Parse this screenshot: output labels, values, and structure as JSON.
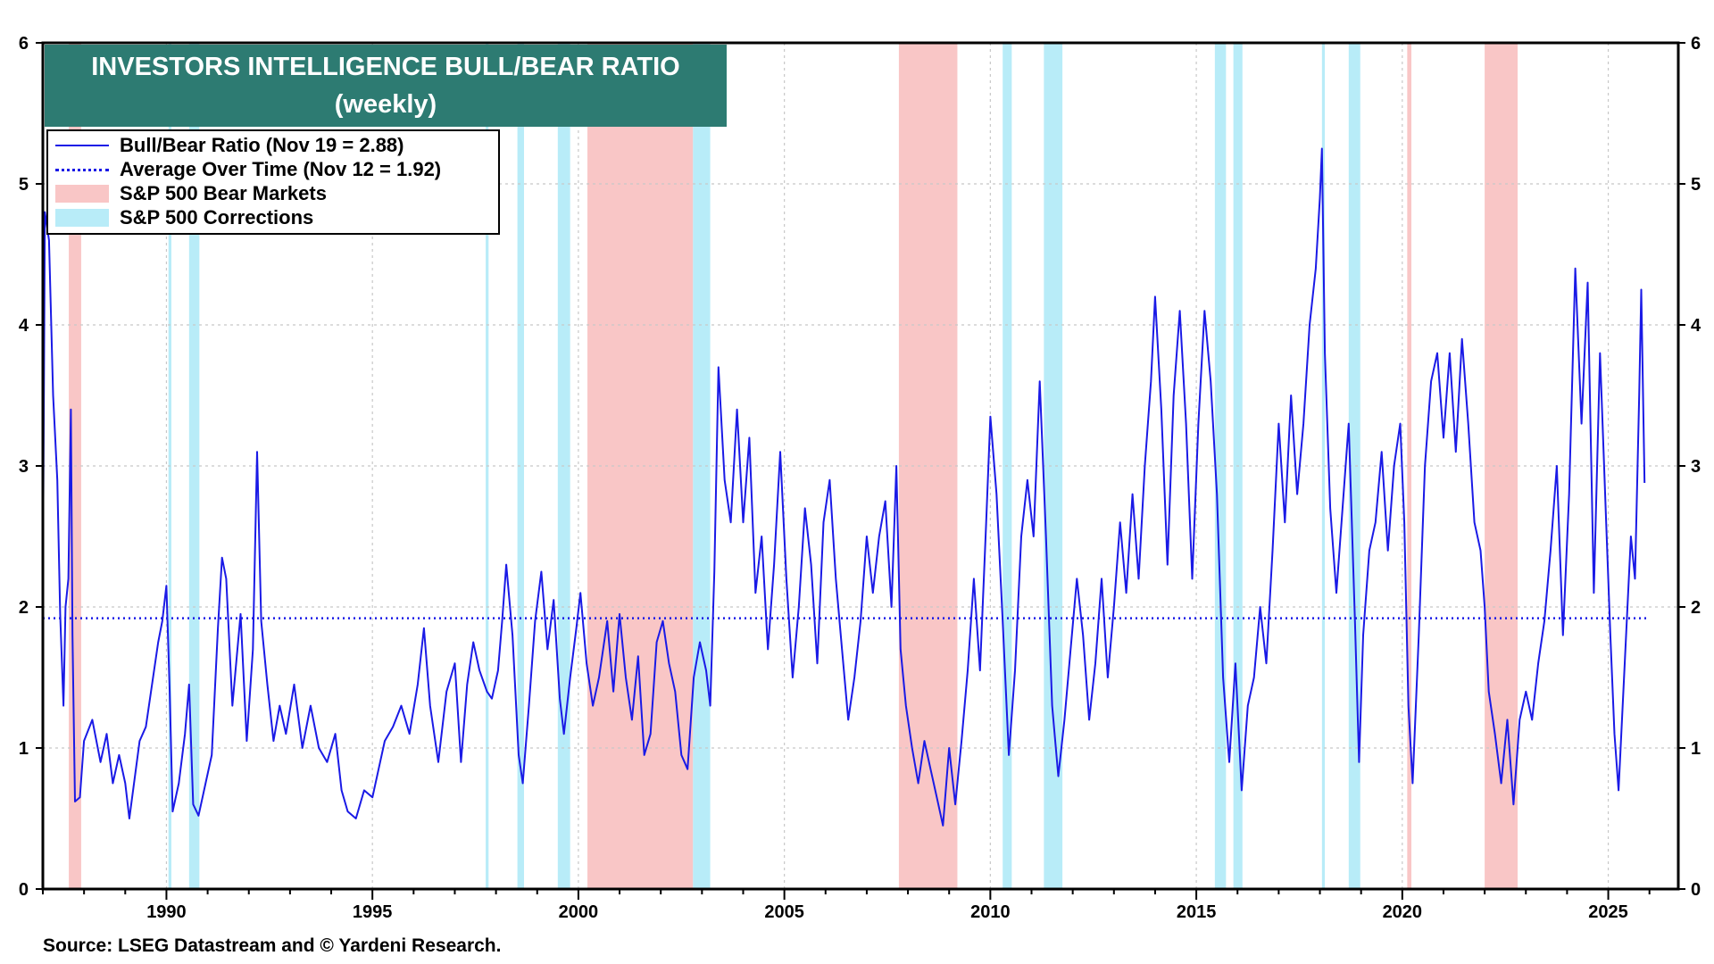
{
  "chart_data": {
    "type": "line",
    "title": "INVESTORS INTELLIGENCE BULL/BEAR RATIO",
    "subtitle": "(weekly)",
    "source": "Source: LSEG Datastream and © Yardeni Research.",
    "ylim": [
      0,
      6
    ],
    "y_ticks": [
      "0",
      "1",
      "2",
      "3",
      "4",
      "5",
      "6"
    ],
    "xlim": [
      1987.0,
      2026.7
    ],
    "x_ticks": [
      "1990",
      "1995",
      "2000",
      "2005",
      "2010",
      "2015",
      "2020",
      "2025"
    ],
    "grid": true,
    "legend_position": "top-left",
    "legend": [
      {
        "label": "Bull/Bear Ratio (Nov 19 = 2.88)",
        "kind": "line",
        "color": "#1a1ae6"
      },
      {
        "label": "Average Over Time (Nov 12 = 1.92)",
        "kind": "dotted",
        "color": "#1a1ae6"
      },
      {
        "label": "S&P 500 Bear Markets",
        "kind": "band",
        "color": "#f9c6c6"
      },
      {
        "label": "S&P 500 Corrections",
        "kind": "band",
        "color": "#b8ecf8"
      }
    ],
    "average": 1.92,
    "bear_markets": [
      [
        1987.63,
        1987.93
      ],
      [
        2000.22,
        2002.78
      ],
      [
        2007.78,
        2009.2
      ],
      [
        2020.12,
        2020.22
      ],
      [
        2022.0,
        2022.8
      ]
    ],
    "corrections": [
      [
        1990.05,
        1990.12
      ],
      [
        1990.55,
        1990.8
      ],
      [
        1997.75,
        1997.82
      ],
      [
        1998.52,
        1998.68
      ],
      [
        1999.5,
        1999.8
      ],
      [
        2002.78,
        2003.2
      ],
      [
        2010.3,
        2010.52
      ],
      [
        2011.3,
        2011.75
      ],
      [
        2015.45,
        2015.72
      ],
      [
        2015.9,
        2016.12
      ],
      [
        2018.05,
        2018.12
      ],
      [
        2018.7,
        2018.98
      ]
    ],
    "series": [
      {
        "name": "Bull/Bear Ratio",
        "color": "#1a1ae6",
        "points": [
          [
            1987.0,
            2.2
          ],
          [
            1987.05,
            4.8
          ],
          [
            1987.15,
            4.6
          ],
          [
            1987.25,
            3.5
          ],
          [
            1987.35,
            2.9
          ],
          [
            1987.42,
            1.95
          ],
          [
            1987.5,
            1.3
          ],
          [
            1987.55,
            2.0
          ],
          [
            1987.62,
            2.2
          ],
          [
            1987.68,
            3.4
          ],
          [
            1987.72,
            1.8
          ],
          [
            1987.78,
            0.62
          ],
          [
            1987.9,
            0.65
          ],
          [
            1988.0,
            1.05
          ],
          [
            1988.2,
            1.2
          ],
          [
            1988.4,
            0.9
          ],
          [
            1988.55,
            1.1
          ],
          [
            1988.7,
            0.75
          ],
          [
            1988.85,
            0.95
          ],
          [
            1989.0,
            0.75
          ],
          [
            1989.1,
            0.5
          ],
          [
            1989.2,
            0.72
          ],
          [
            1989.35,
            1.05
          ],
          [
            1989.5,
            1.15
          ],
          [
            1989.65,
            1.45
          ],
          [
            1989.8,
            1.75
          ],
          [
            1989.9,
            1.9
          ],
          [
            1990.0,
            2.15
          ],
          [
            1990.08,
            1.4
          ],
          [
            1990.15,
            0.55
          ],
          [
            1990.3,
            0.75
          ],
          [
            1990.45,
            1.1
          ],
          [
            1990.55,
            1.45
          ],
          [
            1990.65,
            0.6
          ],
          [
            1990.78,
            0.52
          ],
          [
            1990.95,
            0.75
          ],
          [
            1991.1,
            0.95
          ],
          [
            1991.25,
            1.85
          ],
          [
            1991.35,
            2.35
          ],
          [
            1991.45,
            2.2
          ],
          [
            1991.6,
            1.3
          ],
          [
            1991.8,
            1.95
          ],
          [
            1991.95,
            1.05
          ],
          [
            1992.1,
            1.7
          ],
          [
            1992.2,
            3.1
          ],
          [
            1992.3,
            1.9
          ],
          [
            1992.45,
            1.45
          ],
          [
            1992.6,
            1.05
          ],
          [
            1992.75,
            1.3
          ],
          [
            1992.9,
            1.1
          ],
          [
            1993.1,
            1.45
          ],
          [
            1993.3,
            1.0
          ],
          [
            1993.5,
            1.3
          ],
          [
            1993.7,
            1.0
          ],
          [
            1993.9,
            0.9
          ],
          [
            1994.1,
            1.1
          ],
          [
            1994.25,
            0.7
          ],
          [
            1994.4,
            0.55
          ],
          [
            1994.6,
            0.5
          ],
          [
            1994.8,
            0.7
          ],
          [
            1995.0,
            0.65
          ],
          [
            1995.15,
            0.85
          ],
          [
            1995.3,
            1.05
          ],
          [
            1995.5,
            1.15
          ],
          [
            1995.7,
            1.3
          ],
          [
            1995.9,
            1.1
          ],
          [
            1996.1,
            1.45
          ],
          [
            1996.25,
            1.85
          ],
          [
            1996.4,
            1.3
          ],
          [
            1996.6,
            0.9
          ],
          [
            1996.8,
            1.4
          ],
          [
            1997.0,
            1.6
          ],
          [
            1997.15,
            0.9
          ],
          [
            1997.3,
            1.45
          ],
          [
            1997.45,
            1.75
          ],
          [
            1997.6,
            1.55
          ],
          [
            1997.78,
            1.4
          ],
          [
            1997.9,
            1.35
          ],
          [
            1998.05,
            1.55
          ],
          [
            1998.15,
            1.9
          ],
          [
            1998.25,
            2.3
          ],
          [
            1998.4,
            1.8
          ],
          [
            1998.55,
            0.95
          ],
          [
            1998.65,
            0.75
          ],
          [
            1998.8,
            1.3
          ],
          [
            1998.95,
            1.9
          ],
          [
            1999.1,
            2.25
          ],
          [
            1999.25,
            1.7
          ],
          [
            1999.4,
            2.05
          ],
          [
            1999.55,
            1.35
          ],
          [
            1999.65,
            1.1
          ],
          [
            1999.8,
            1.5
          ],
          [
            1999.95,
            1.85
          ],
          [
            2000.05,
            2.1
          ],
          [
            2000.2,
            1.6
          ],
          [
            2000.35,
            1.3
          ],
          [
            2000.5,
            1.5
          ],
          [
            2000.7,
            1.9
          ],
          [
            2000.85,
            1.4
          ],
          [
            2001.0,
            1.95
          ],
          [
            2001.15,
            1.5
          ],
          [
            2001.3,
            1.2
          ],
          [
            2001.45,
            1.65
          ],
          [
            2001.6,
            0.95
          ],
          [
            2001.75,
            1.1
          ],
          [
            2001.9,
            1.75
          ],
          [
            2002.05,
            1.9
          ],
          [
            2002.2,
            1.6
          ],
          [
            2002.35,
            1.4
          ],
          [
            2002.5,
            0.95
          ],
          [
            2002.65,
            0.85
          ],
          [
            2002.8,
            1.5
          ],
          [
            2002.95,
            1.75
          ],
          [
            2003.1,
            1.55
          ],
          [
            2003.2,
            1.3
          ],
          [
            2003.3,
            2.25
          ],
          [
            2003.4,
            3.7
          ],
          [
            2003.55,
            2.9
          ],
          [
            2003.7,
            2.6
          ],
          [
            2003.85,
            3.4
          ],
          [
            2004.0,
            2.6
          ],
          [
            2004.15,
            3.2
          ],
          [
            2004.3,
            2.1
          ],
          [
            2004.45,
            2.5
          ],
          [
            2004.6,
            1.7
          ],
          [
            2004.75,
            2.3
          ],
          [
            2004.9,
            3.1
          ],
          [
            2005.05,
            2.2
          ],
          [
            2005.2,
            1.5
          ],
          [
            2005.35,
            2.0
          ],
          [
            2005.5,
            2.7
          ],
          [
            2005.65,
            2.3
          ],
          [
            2005.8,
            1.6
          ],
          [
            2005.95,
            2.6
          ],
          [
            2006.1,
            2.9
          ],
          [
            2006.25,
            2.2
          ],
          [
            2006.4,
            1.7
          ],
          [
            2006.55,
            1.2
          ],
          [
            2006.7,
            1.5
          ],
          [
            2006.85,
            1.9
          ],
          [
            2007.0,
            2.5
          ],
          [
            2007.15,
            2.1
          ],
          [
            2007.3,
            2.5
          ],
          [
            2007.45,
            2.75
          ],
          [
            2007.6,
            2.0
          ],
          [
            2007.72,
            3.0
          ],
          [
            2007.82,
            1.7
          ],
          [
            2007.95,
            1.3
          ],
          [
            2008.1,
            1.0
          ],
          [
            2008.25,
            0.75
          ],
          [
            2008.4,
            1.05
          ],
          [
            2008.55,
            0.85
          ],
          [
            2008.7,
            0.65
          ],
          [
            2008.85,
            0.45
          ],
          [
            2009.0,
            1.0
          ],
          [
            2009.15,
            0.6
          ],
          [
            2009.3,
            1.05
          ],
          [
            2009.45,
            1.55
          ],
          [
            2009.6,
            2.2
          ],
          [
            2009.75,
            1.55
          ],
          [
            2009.9,
            2.6
          ],
          [
            2010.0,
            3.35
          ],
          [
            2010.15,
            2.8
          ],
          [
            2010.3,
            1.9
          ],
          [
            2010.45,
            0.95
          ],
          [
            2010.6,
            1.55
          ],
          [
            2010.75,
            2.5
          ],
          [
            2010.9,
            2.9
          ],
          [
            2011.05,
            2.5
          ],
          [
            2011.2,
            3.6
          ],
          [
            2011.35,
            2.5
          ],
          [
            2011.5,
            1.3
          ],
          [
            2011.65,
            0.8
          ],
          [
            2011.8,
            1.2
          ],
          [
            2011.95,
            1.7
          ],
          [
            2012.1,
            2.2
          ],
          [
            2012.25,
            1.8
          ],
          [
            2012.4,
            1.2
          ],
          [
            2012.55,
            1.6
          ],
          [
            2012.7,
            2.2
          ],
          [
            2012.85,
            1.5
          ],
          [
            2013.0,
            2.0
          ],
          [
            2013.15,
            2.6
          ],
          [
            2013.3,
            2.1
          ],
          [
            2013.45,
            2.8
          ],
          [
            2013.6,
            2.2
          ],
          [
            2013.75,
            3.0
          ],
          [
            2013.9,
            3.6
          ],
          [
            2014.0,
            4.2
          ],
          [
            2014.15,
            3.4
          ],
          [
            2014.3,
            2.3
          ],
          [
            2014.45,
            3.5
          ],
          [
            2014.6,
            4.1
          ],
          [
            2014.75,
            3.3
          ],
          [
            2014.9,
            2.2
          ],
          [
            2015.05,
            3.3
          ],
          [
            2015.2,
            4.1
          ],
          [
            2015.35,
            3.6
          ],
          [
            2015.5,
            2.8
          ],
          [
            2015.65,
            1.5
          ],
          [
            2015.8,
            0.9
          ],
          [
            2015.95,
            1.6
          ],
          [
            2016.1,
            0.7
          ],
          [
            2016.25,
            1.3
          ],
          [
            2016.4,
            1.5
          ],
          [
            2016.55,
            2.0
          ],
          [
            2016.7,
            1.6
          ],
          [
            2016.85,
            2.4
          ],
          [
            2017.0,
            3.3
          ],
          [
            2017.15,
            2.6
          ],
          [
            2017.3,
            3.5
          ],
          [
            2017.45,
            2.8
          ],
          [
            2017.6,
            3.3
          ],
          [
            2017.75,
            4.0
          ],
          [
            2017.9,
            4.4
          ],
          [
            2018.0,
            4.9
          ],
          [
            2018.05,
            5.25
          ],
          [
            2018.12,
            3.8
          ],
          [
            2018.25,
            2.7
          ],
          [
            2018.4,
            2.1
          ],
          [
            2018.55,
            2.7
          ],
          [
            2018.7,
            3.3
          ],
          [
            2018.85,
            1.9
          ],
          [
            2018.95,
            0.9
          ],
          [
            2019.05,
            1.8
          ],
          [
            2019.2,
            2.4
          ],
          [
            2019.35,
            2.6
          ],
          [
            2019.5,
            3.1
          ],
          [
            2019.65,
            2.4
          ],
          [
            2019.8,
            3.0
          ],
          [
            2019.95,
            3.3
          ],
          [
            2020.05,
            2.6
          ],
          [
            2020.15,
            1.3
          ],
          [
            2020.25,
            0.75
          ],
          [
            2020.4,
            1.8
          ],
          [
            2020.55,
            3.0
          ],
          [
            2020.7,
            3.6
          ],
          [
            2020.85,
            3.8
          ],
          [
            2021.0,
            3.2
          ],
          [
            2021.15,
            3.8
          ],
          [
            2021.3,
            3.1
          ],
          [
            2021.45,
            3.9
          ],
          [
            2021.6,
            3.3
          ],
          [
            2021.75,
            2.6
          ],
          [
            2021.9,
            2.4
          ],
          [
            2022.0,
            2.0
          ],
          [
            2022.1,
            1.4
          ],
          [
            2022.25,
            1.1
          ],
          [
            2022.4,
            0.75
          ],
          [
            2022.55,
            1.2
          ],
          [
            2022.7,
            0.6
          ],
          [
            2022.85,
            1.2
          ],
          [
            2023.0,
            1.4
          ],
          [
            2023.15,
            1.2
          ],
          [
            2023.3,
            1.6
          ],
          [
            2023.45,
            1.9
          ],
          [
            2023.6,
            2.4
          ],
          [
            2023.75,
            3.0
          ],
          [
            2023.9,
            1.8
          ],
          [
            2024.05,
            2.8
          ],
          [
            2024.2,
            4.4
          ],
          [
            2024.35,
            3.3
          ],
          [
            2024.5,
            4.3
          ],
          [
            2024.65,
            2.1
          ],
          [
            2024.8,
            3.8
          ],
          [
            2024.95,
            2.6
          ],
          [
            2025.05,
            1.8
          ],
          [
            2025.15,
            1.1
          ],
          [
            2025.25,
            0.7
          ],
          [
            2025.4,
            1.6
          ],
          [
            2025.55,
            2.5
          ],
          [
            2025.65,
            2.2
          ],
          [
            2025.75,
            3.5
          ],
          [
            2025.8,
            4.25
          ],
          [
            2025.88,
            2.88
          ]
        ]
      }
    ]
  }
}
